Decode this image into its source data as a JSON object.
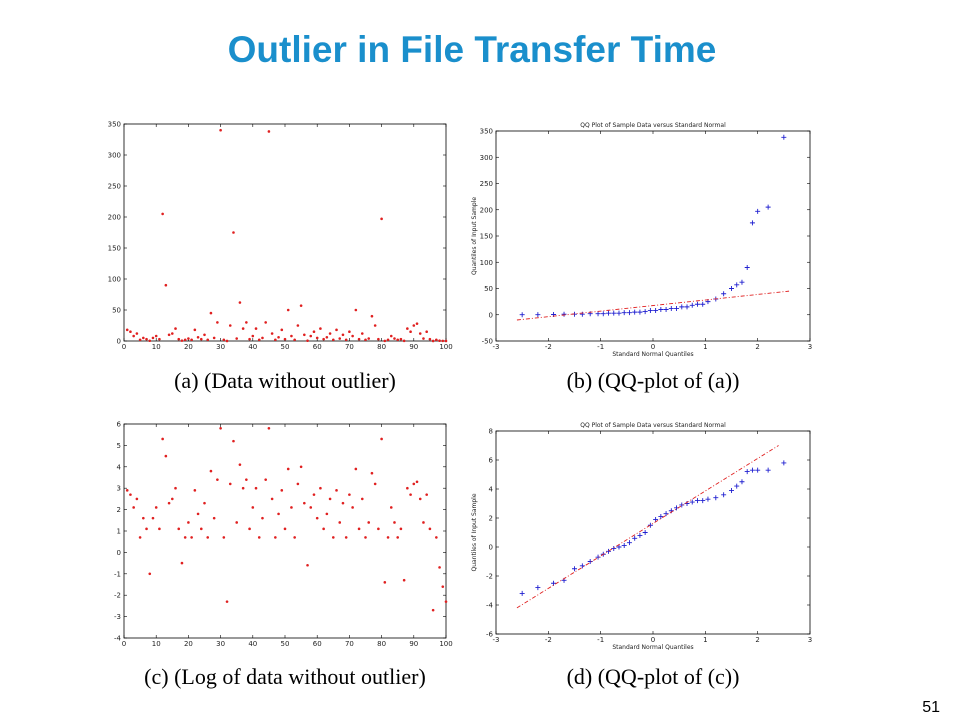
{
  "slide": {
    "title": "Outlier in File Transfer Time",
    "page_number": "51"
  },
  "chart_data": [
    {
      "type": "scatter",
      "caption": "(a)  (Data without outlier)",
      "series": [
        {
          "color": "#e02020",
          "x": [
            1,
            2,
            3,
            4,
            5,
            6,
            7,
            8,
            9,
            10,
            11,
            12,
            13,
            14,
            15,
            16,
            17,
            18,
            19,
            20,
            21,
            22,
            23,
            24,
            25,
            26,
            27,
            28,
            29,
            30,
            31,
            32,
            33,
            34,
            35,
            36,
            37,
            38,
            39,
            40,
            41,
            42,
            43,
            44,
            45,
            46,
            47,
            48,
            49,
            50,
            51,
            52,
            53,
            54,
            55,
            56,
            57,
            58,
            59,
            60,
            61,
            62,
            63,
            64,
            65,
            66,
            67,
            68,
            69,
            70,
            71,
            72,
            73,
            74,
            75,
            76,
            77,
            78,
            79,
            80,
            81,
            82,
            83,
            84,
            85,
            86,
            87,
            88,
            89,
            90,
            91,
            92,
            93,
            94,
            95,
            96,
            97,
            98,
            99,
            100
          ],
          "values": [
            18,
            15,
            8,
            12,
            2,
            5,
            3,
            0.4,
            5,
            8,
            3,
            205,
            90,
            10,
            12,
            20,
            3,
            0.6,
            2,
            4,
            2,
            18,
            6,
            3,
            10,
            2,
            45,
            5,
            30,
            340,
            2,
            0.1,
            25,
            175,
            4,
            62,
            20,
            30,
            3,
            8,
            20,
            2,
            5,
            30,
            338,
            12,
            2,
            6,
            18,
            3,
            50,
            8,
            2,
            25,
            57,
            10,
            0.5,
            8,
            15,
            5,
            20,
            3,
            6,
            12,
            2,
            18,
            4,
            10,
            2,
            15,
            8,
            50,
            3,
            12,
            2,
            4,
            40,
            25,
            3,
            197,
            0.2,
            2,
            8,
            4,
            2,
            3,
            0.3,
            20,
            15,
            25,
            28,
            12,
            4,
            15,
            3,
            0.1,
            2,
            0.5,
            0.2,
            0.1
          ]
        }
      ],
      "xlim": [
        0,
        100
      ],
      "ylim": [
        0,
        350
      ],
      "xticks": [
        0,
        10,
        20,
        30,
        40,
        50,
        60,
        70,
        80,
        90,
        100
      ],
      "yticks": [
        0,
        50,
        100,
        150,
        200,
        250,
        300,
        350
      ]
    },
    {
      "type": "qq",
      "title": "QQ Plot of Sample Data versus Standard Normal",
      "xlabel": "Standard Normal Quantiles",
      "ylabel": "Quantiles of Input Sample",
      "caption": "(b)  (QQ-plot of (a))",
      "series": [
        {
          "color": "#2020d0",
          "x": [
            -2.5,
            -2.2,
            -1.9,
            -1.7,
            -1.5,
            -1.35,
            -1.2,
            -1.05,
            -0.95,
            -0.85,
            -0.75,
            -0.65,
            -0.55,
            -0.45,
            -0.35,
            -0.25,
            -0.15,
            -0.05,
            0.05,
            0.15,
            0.25,
            0.35,
            0.45,
            0.55,
            0.65,
            0.75,
            0.85,
            0.95,
            1.05,
            1.2,
            1.35,
            1.5,
            1.6,
            1.7,
            1.8,
            1.9,
            2.0,
            2.2,
            2.5
          ],
          "values": [
            0.1,
            0.2,
            0.5,
            1,
            1,
            1,
            2,
            2,
            2,
            3,
            3,
            3,
            4,
            4,
            5,
            5,
            6,
            8,
            8,
            10,
            10,
            12,
            12,
            15,
            15,
            18,
            20,
            20,
            25,
            30,
            40,
            50,
            57,
            62,
            90,
            175,
            197,
            205,
            338
          ]
        }
      ],
      "reference_line": {
        "color": "#e02020",
        "x": [
          -2.6,
          2.6
        ],
        "y": [
          -10,
          45
        ]
      },
      "xlim": [
        -3,
        3
      ],
      "ylim": [
        -50,
        350
      ],
      "xticks": [
        -3,
        -2,
        -1,
        0,
        1,
        2,
        3
      ],
      "yticks": [
        -50,
        0,
        50,
        100,
        150,
        200,
        250,
        300,
        350
      ]
    },
    {
      "type": "scatter",
      "caption": "(c)  (Log of data without outlier)",
      "series": [
        {
          "color": "#e02020",
          "x": [
            1,
            2,
            3,
            4,
            5,
            6,
            7,
            8,
            9,
            10,
            11,
            12,
            13,
            14,
            15,
            16,
            17,
            18,
            19,
            20,
            21,
            22,
            23,
            24,
            25,
            26,
            27,
            28,
            29,
            30,
            31,
            32,
            33,
            34,
            35,
            36,
            37,
            38,
            39,
            40,
            41,
            42,
            43,
            44,
            45,
            46,
            47,
            48,
            49,
            50,
            51,
            52,
            53,
            54,
            55,
            56,
            57,
            58,
            59,
            60,
            61,
            62,
            63,
            64,
            65,
            66,
            67,
            68,
            69,
            70,
            71,
            72,
            73,
            74,
            75,
            76,
            77,
            78,
            79,
            80,
            81,
            82,
            83,
            84,
            85,
            86,
            87,
            88,
            89,
            90,
            91,
            92,
            93,
            94,
            95,
            96,
            97,
            98,
            99,
            100
          ],
          "values": [
            2.9,
            2.7,
            2.1,
            2.5,
            0.7,
            1.6,
            1.1,
            -1.0,
            1.6,
            2.1,
            1.1,
            5.3,
            4.5,
            2.3,
            2.5,
            3.0,
            1.1,
            -0.5,
            0.7,
            1.4,
            0.7,
            2.9,
            1.8,
            1.1,
            2.3,
            0.7,
            3.8,
            1.6,
            3.4,
            5.8,
            0.7,
            -2.3,
            3.2,
            5.2,
            1.4,
            4.1,
            3.0,
            3.4,
            1.1,
            2.1,
            3.0,
            0.7,
            1.6,
            3.4,
            5.8,
            2.5,
            0.7,
            1.8,
            2.9,
            1.1,
            3.9,
            2.1,
            0.7,
            3.2,
            4.0,
            2.3,
            -0.6,
            2.1,
            2.7,
            1.6,
            3.0,
            1.1,
            1.8,
            2.5,
            0.7,
            2.9,
            1.4,
            2.3,
            0.7,
            2.7,
            2.1,
            3.9,
            1.1,
            2.5,
            0.7,
            1.4,
            3.7,
            3.2,
            1.1,
            5.3,
            -1.4,
            0.7,
            2.1,
            1.4,
            0.7,
            1.1,
            -1.3,
            3.0,
            2.7,
            3.2,
            3.3,
            2.5,
            1.4,
            2.7,
            1.1,
            -2.7,
            0.7,
            -0.7,
            -1.6,
            -2.3
          ]
        }
      ],
      "xlim": [
        0,
        100
      ],
      "ylim": [
        -4,
        6
      ],
      "xticks": [
        0,
        10,
        20,
        30,
        40,
        50,
        60,
        70,
        80,
        90,
        100
      ],
      "yticks": [
        -4,
        -3,
        -2,
        -1,
        0,
        1,
        2,
        3,
        4,
        5,
        6
      ]
    },
    {
      "type": "qq",
      "title": "QQ Plot of Sample Data versus Standard Normal",
      "xlabel": "Standard Normal Quantiles",
      "ylabel": "Quantiles of Input Sample",
      "caption": "(d)  (QQ-plot of (c))",
      "series": [
        {
          "color": "#2020d0",
          "x": [
            -2.5,
            -2.2,
            -1.9,
            -1.7,
            -1.5,
            -1.35,
            -1.2,
            -1.05,
            -0.95,
            -0.85,
            -0.75,
            -0.65,
            -0.55,
            -0.45,
            -0.35,
            -0.25,
            -0.15,
            -0.05,
            0.05,
            0.15,
            0.25,
            0.35,
            0.45,
            0.55,
            0.65,
            0.75,
            0.85,
            0.95,
            1.05,
            1.2,
            1.35,
            1.5,
            1.6,
            1.7,
            1.8,
            1.9,
            2.0,
            2.2,
            2.5
          ],
          "values": [
            -3.2,
            -2.8,
            -2.5,
            -2.3,
            -1.5,
            -1.3,
            -1.0,
            -0.7,
            -0.5,
            -0.3,
            -0.1,
            0,
            0.1,
            0.3,
            0.6,
            0.8,
            1.0,
            1.5,
            1.9,
            2.1,
            2.3,
            2.5,
            2.7,
            2.9,
            3.0,
            3.1,
            3.2,
            3.2,
            3.3,
            3.4,
            3.6,
            3.9,
            4.2,
            4.5,
            5.2,
            5.3,
            5.3,
            5.3,
            5.8
          ]
        }
      ],
      "reference_line": {
        "color": "#e02020",
        "x": [
          -2.6,
          2.4
        ],
        "y": [
          -4.2,
          7.0
        ]
      },
      "xlim": [
        -3,
        3
      ],
      "ylim": [
        -6,
        8
      ],
      "xticks": [
        -3,
        -2,
        -1,
        0,
        1,
        2,
        3
      ],
      "yticks": [
        -6,
        -4,
        -2,
        0,
        2,
        4,
        6,
        8
      ]
    }
  ]
}
